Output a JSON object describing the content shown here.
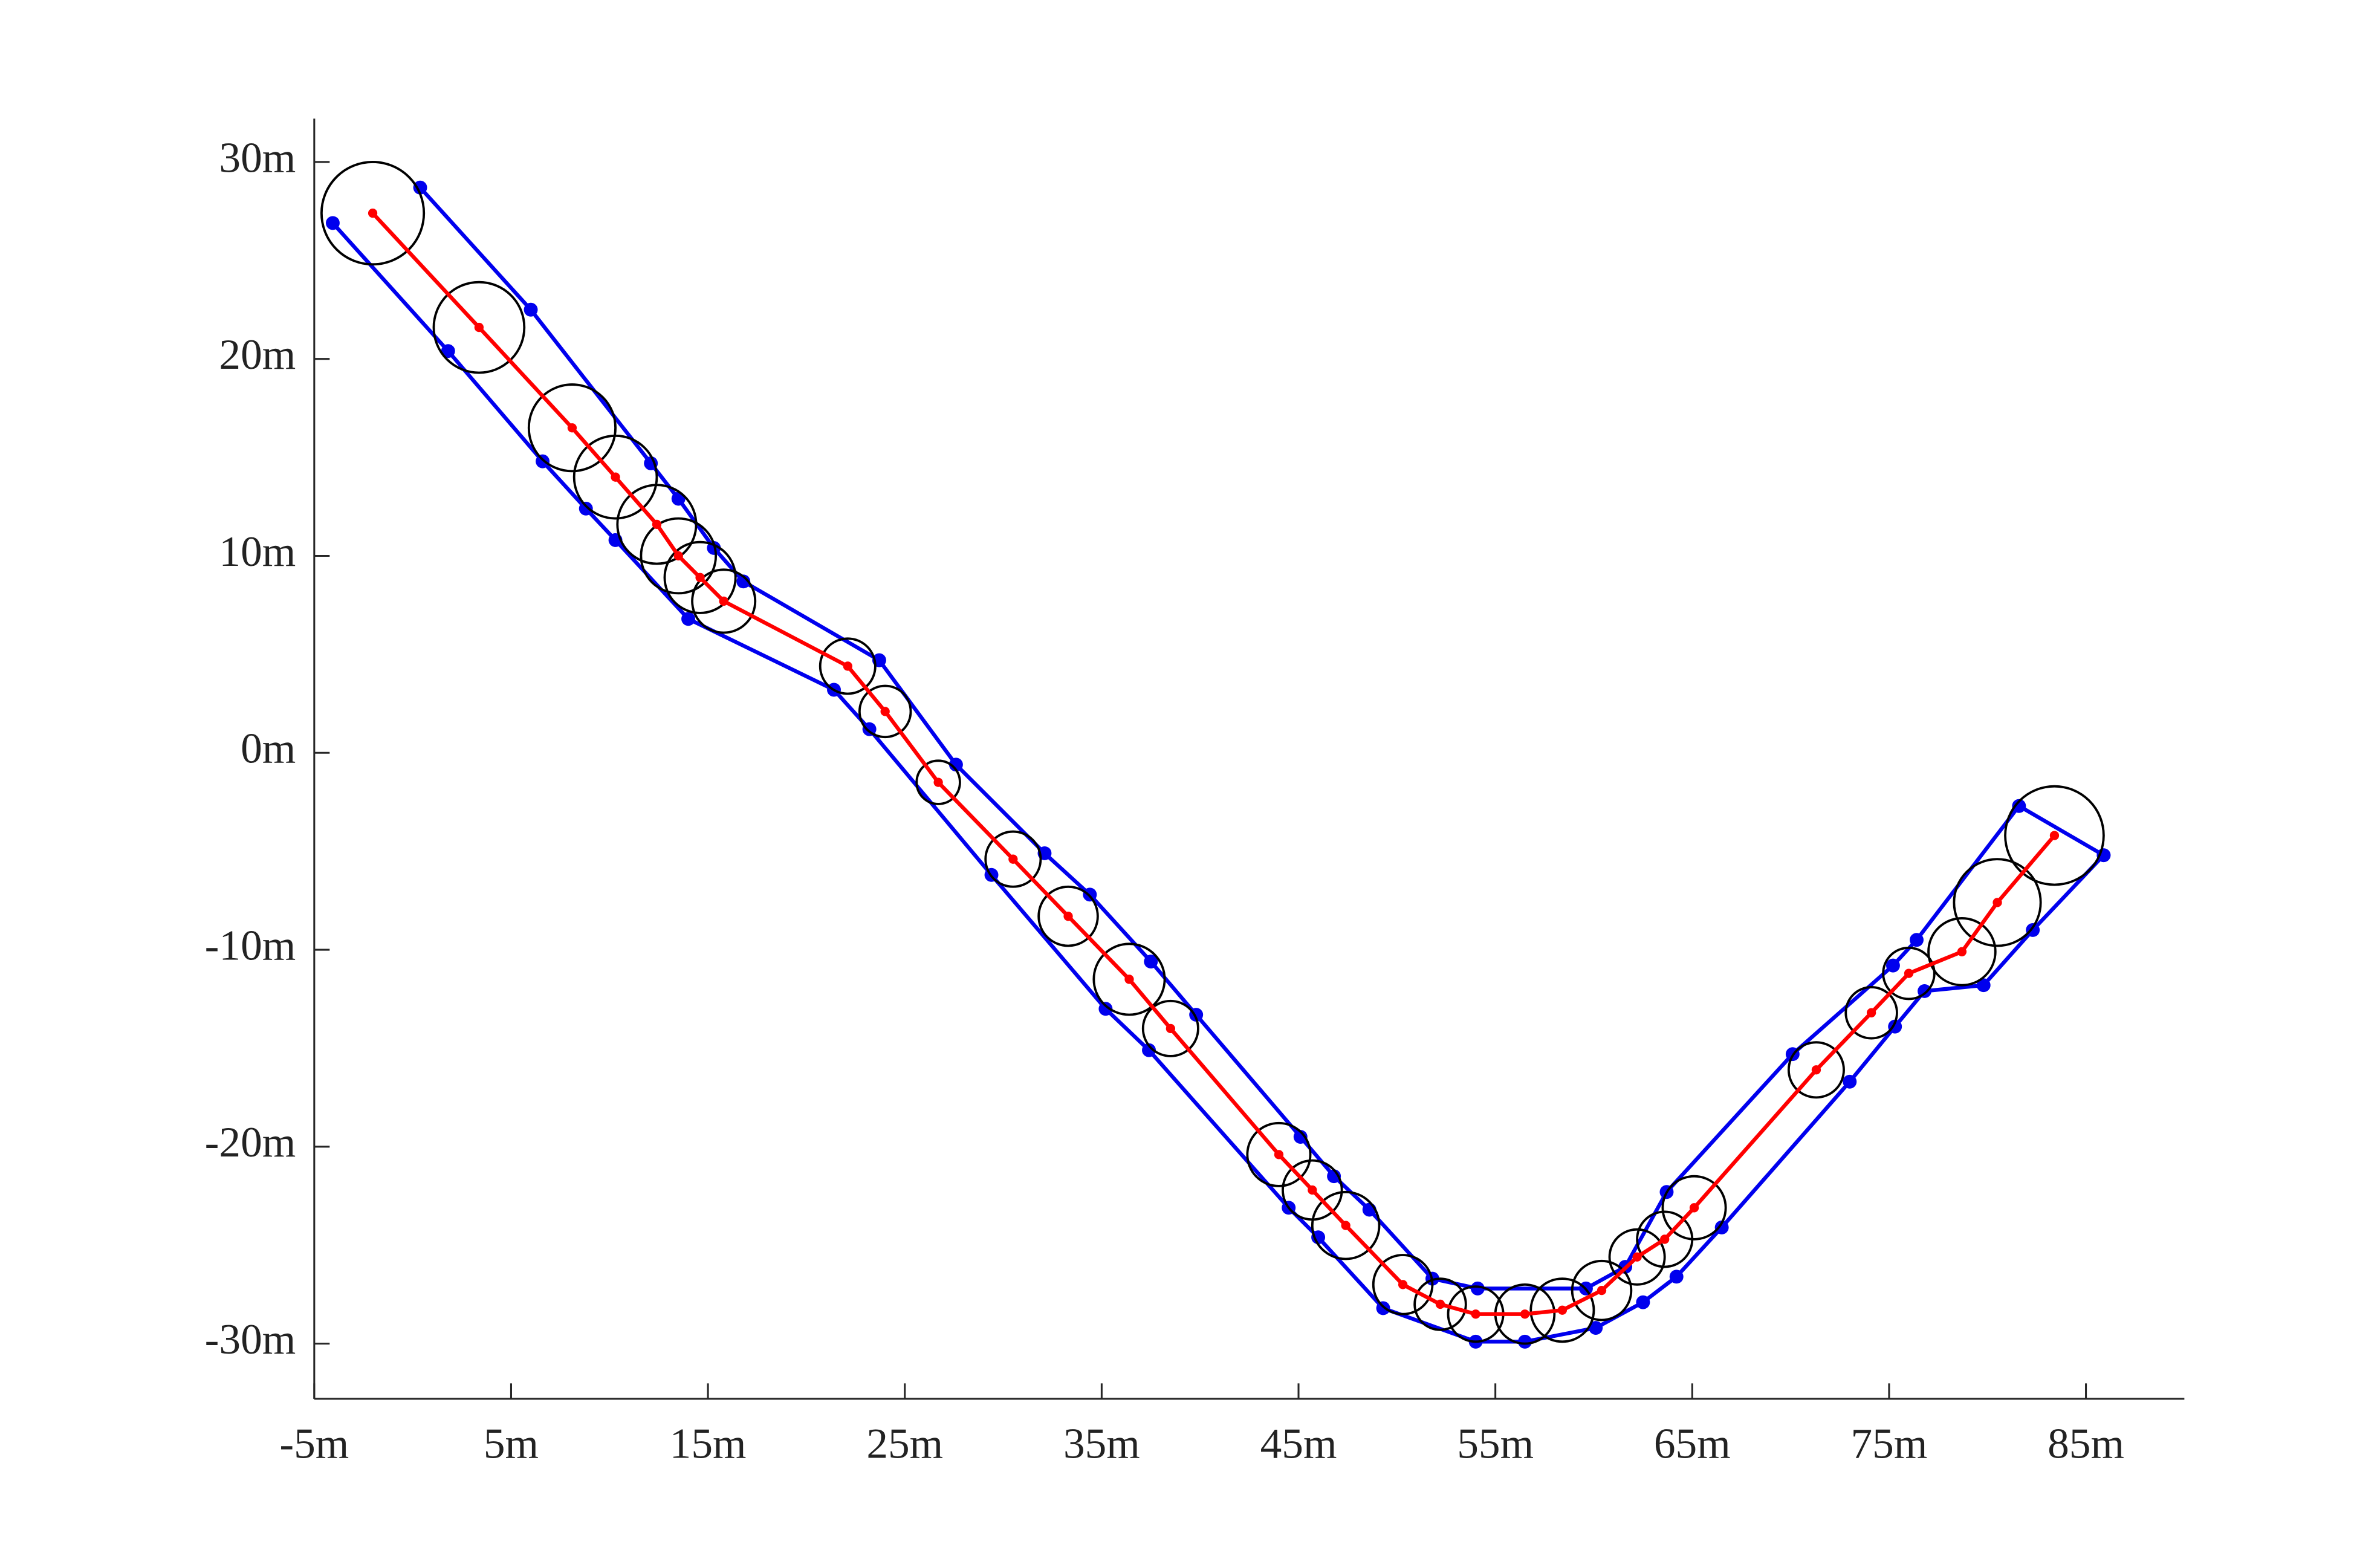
{
  "chart_data": {
    "type": "line",
    "xlim": [
      -5,
      90
    ],
    "ylim": [
      -32.8,
      32.2
    ],
    "xticks": [
      {
        "value": -5,
        "label": "-5m"
      },
      {
        "value": 5,
        "label": "5m"
      },
      {
        "value": 15,
        "label": "15m"
      },
      {
        "value": 25,
        "label": "25m"
      },
      {
        "value": 35,
        "label": "35m"
      },
      {
        "value": 45,
        "label": "45m"
      },
      {
        "value": 55,
        "label": "55m"
      },
      {
        "value": 65,
        "label": "65m"
      },
      {
        "value": 75,
        "label": "75m"
      },
      {
        "value": 85,
        "label": "85m"
      }
    ],
    "yticks": [
      {
        "value": -30,
        "label": "-30m"
      },
      {
        "value": -20,
        "label": "-20m"
      },
      {
        "value": -10,
        "label": "-10m"
      },
      {
        "value": 0,
        "label": "0m"
      },
      {
        "value": 10,
        "label": "10m"
      },
      {
        "value": 20,
        "label": "20m"
      },
      {
        "value": 30,
        "label": "30m"
      }
    ],
    "series": [
      {
        "style": "line",
        "color": "#0000ee",
        "x": [
          0.38,
          6.0,
          12.1,
          13.5,
          15.3,
          16.8,
          23.7,
          27.6,
          32.1,
          34.4,
          37.5,
          39.8,
          45.1,
          46.8,
          48.6,
          51.8,
          54.1,
          59.6,
          61.6,
          63.7,
          70.1,
          75.2,
          76.4,
          81.6,
          85.9
        ],
        "values": [
          28.7,
          22.5,
          14.7,
          12.9,
          10.4,
          8.7,
          4.7,
          -0.6,
          -5.1,
          -7.2,
          -10.6,
          -13.3,
          -19.5,
          -21.5,
          -23.2,
          -26.7,
          -27.2,
          -27.2,
          -26.1,
          -22.3,
          -15.3,
          -10.8,
          -9.5,
          -2.7,
          -5.2
        ]
      },
      {
        "style": "line",
        "color": "#0000ee",
        "x": [
          -4.06,
          1.8,
          6.6,
          8.8,
          10.3,
          14.0,
          21.4,
          23.2,
          29.4,
          35.2,
          37.4,
          44.5,
          46.0,
          49.3,
          54.0,
          56.5,
          60.1,
          62.5,
          64.2,
          66.5,
          73.0,
          75.3,
          76.8,
          79.8,
          82.3,
          85.9
        ],
        "values": [
          26.9,
          20.4,
          14.8,
          12.4,
          10.8,
          6.8,
          3.2,
          1.2,
          -6.2,
          -13.0,
          -15.1,
          -23.1,
          -24.6,
          -28.2,
          -29.9,
          -29.9,
          -29.2,
          -27.9,
          -26.6,
          -24.1,
          -16.7,
          -13.9,
          -12.1,
          -11.8,
          -9.0,
          -5.2
        ]
      },
      {
        "style": "circle",
        "color": "#000000",
        "x": [
          -2.03,
          3.37,
          8.1,
          10.3,
          12.4,
          13.5,
          14.6,
          15.8,
          22.1,
          24.0,
          26.7,
          30.5,
          33.3,
          36.4,
          38.5,
          44.0,
          45.7,
          47.4,
          50.3,
          52.2,
          54.0,
          56.5,
          58.4,
          60.4,
          62.2,
          63.6,
          65.1,
          71.3,
          74.1,
          76.0,
          78.7,
          80.5,
          83.4
        ],
        "values": [
          27.4,
          21.6,
          16.5,
          14.0,
          11.6,
          10.0,
          8.9,
          7.7,
          4.4,
          2.1,
          -1.5,
          -5.4,
          -8.3,
          -11.5,
          -14.0,
          -20.4,
          -22.2,
          -24.0,
          -27.0,
          -28.0,
          -28.5,
          -28.5,
          -28.3,
          -27.3,
          -25.6,
          -24.7,
          -23.1,
          -16.1,
          -13.2,
          -11.2,
          -10.1,
          -7.6,
          -4.2
        ],
        "sizes": [
          2.6,
          2.3,
          2.2,
          2.1,
          2.0,
          1.9,
          1.8,
          1.6,
          1.4,
          1.3,
          1.1,
          1.4,
          1.5,
          1.8,
          1.4,
          1.6,
          1.5,
          1.7,
          1.5,
          1.3,
          1.4,
          1.5,
          1.6,
          1.5,
          1.4,
          1.4,
          1.6,
          1.4,
          1.3,
          1.3,
          1.7,
          2.2,
          2.5
        ]
      },
      {
        "style": "line",
        "color": "#ff0000",
        "x": [
          -2.03,
          3.37,
          8.1,
          10.3,
          12.4,
          13.5,
          14.6,
          15.8,
          22.1,
          24.0,
          26.7,
          30.5,
          33.3,
          36.4,
          38.5,
          44.0,
          45.7,
          47.4,
          50.3,
          52.2,
          54.0,
          56.5,
          58.4,
          60.4,
          62.2,
          63.6,
          65.1,
          71.3,
          74.1,
          76.0,
          78.7,
          80.5,
          83.4
        ],
        "values": [
          27.4,
          21.6,
          16.5,
          14.0,
          11.6,
          10.0,
          8.9,
          7.7,
          4.4,
          2.1,
          -1.5,
          -5.4,
          -8.3,
          -11.5,
          -14.0,
          -20.4,
          -22.2,
          -24.0,
          -27.0,
          -28.0,
          -28.5,
          -28.5,
          -28.3,
          -27.3,
          -25.6,
          -24.7,
          -23.1,
          -16.1,
          -13.2,
          -11.2,
          -10.1,
          -7.6,
          -4.2
        ]
      }
    ]
  }
}
